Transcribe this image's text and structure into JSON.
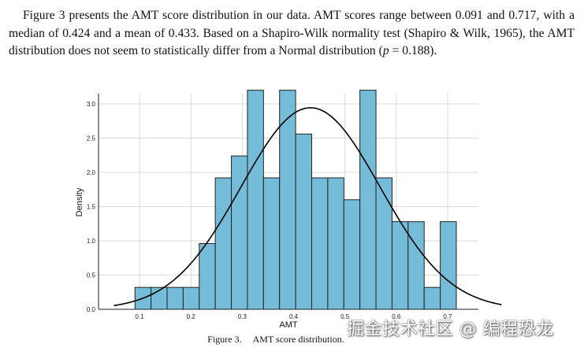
{
  "paragraph": {
    "text_before_p": "Figure 3 presents the AMT score distribution in our data. AMT scores range between 0.091 and 0.717, with a median of 0.424 and a mean of 0.433. Based on a Shapiro-Wilk normality test (Shapiro & Wilk, 1965), the AMT distribution does not seem to statistically differ from a Normal distribution (",
    "p_symbol": "p",
    "text_after_p": " = 0.188)."
  },
  "caption": {
    "label": "Figure 3.",
    "text": "AMT score distribution."
  },
  "watermark": "掘金技术社区 @ 编程恐龙",
  "chart_data": {
    "type": "bar",
    "xlabel": "AMT",
    "ylabel": "Density",
    "xlim": [
      0.02,
      0.76
    ],
    "ylim": [
      0,
      3.15
    ],
    "xticks": [
      "0.1",
      "0.2",
      "0.3",
      "0.4",
      "0.5",
      "0.6",
      "0.7"
    ],
    "yticks": [
      "0.0",
      "0.5",
      "1.0",
      "1.5",
      "2.0",
      "2.5",
      "3.0"
    ],
    "grid": true,
    "bar_color": "#75bcd9",
    "bar_edge_color": "#222222",
    "bin_width": 0.0313,
    "bins": [
      {
        "x0": 0.091,
        "value": 0.32
      },
      {
        "x0": 0.1223,
        "value": 0.32
      },
      {
        "x0": 0.1536,
        "value": 0.32
      },
      {
        "x0": 0.1849,
        "value": 0.32
      },
      {
        "x0": 0.2162,
        "value": 0.96
      },
      {
        "x0": 0.2475,
        "value": 1.92
      },
      {
        "x0": 0.2788,
        "value": 2.24
      },
      {
        "x0": 0.3101,
        "value": 3.2
      },
      {
        "x0": 0.3414,
        "value": 1.92
      },
      {
        "x0": 0.3727,
        "value": 3.2
      },
      {
        "x0": 0.404,
        "value": 2.56
      },
      {
        "x0": 0.4353,
        "value": 1.92
      },
      {
        "x0": 0.4666,
        "value": 1.92
      },
      {
        "x0": 0.4979,
        "value": 1.6
      },
      {
        "x0": 0.5292,
        "value": 3.2
      },
      {
        "x0": 0.5605,
        "value": 1.92
      },
      {
        "x0": 0.5918,
        "value": 1.28
      },
      {
        "x0": 0.6231,
        "value": 1.28
      },
      {
        "x0": 0.6544,
        "value": 0.32
      },
      {
        "x0": 0.6857,
        "value": 1.28
      }
    ],
    "normal_curve": {
      "mean": 0.433,
      "sd": 0.1355,
      "x_range": [
        0.05,
        0.805
      ],
      "color": "#000000"
    }
  }
}
